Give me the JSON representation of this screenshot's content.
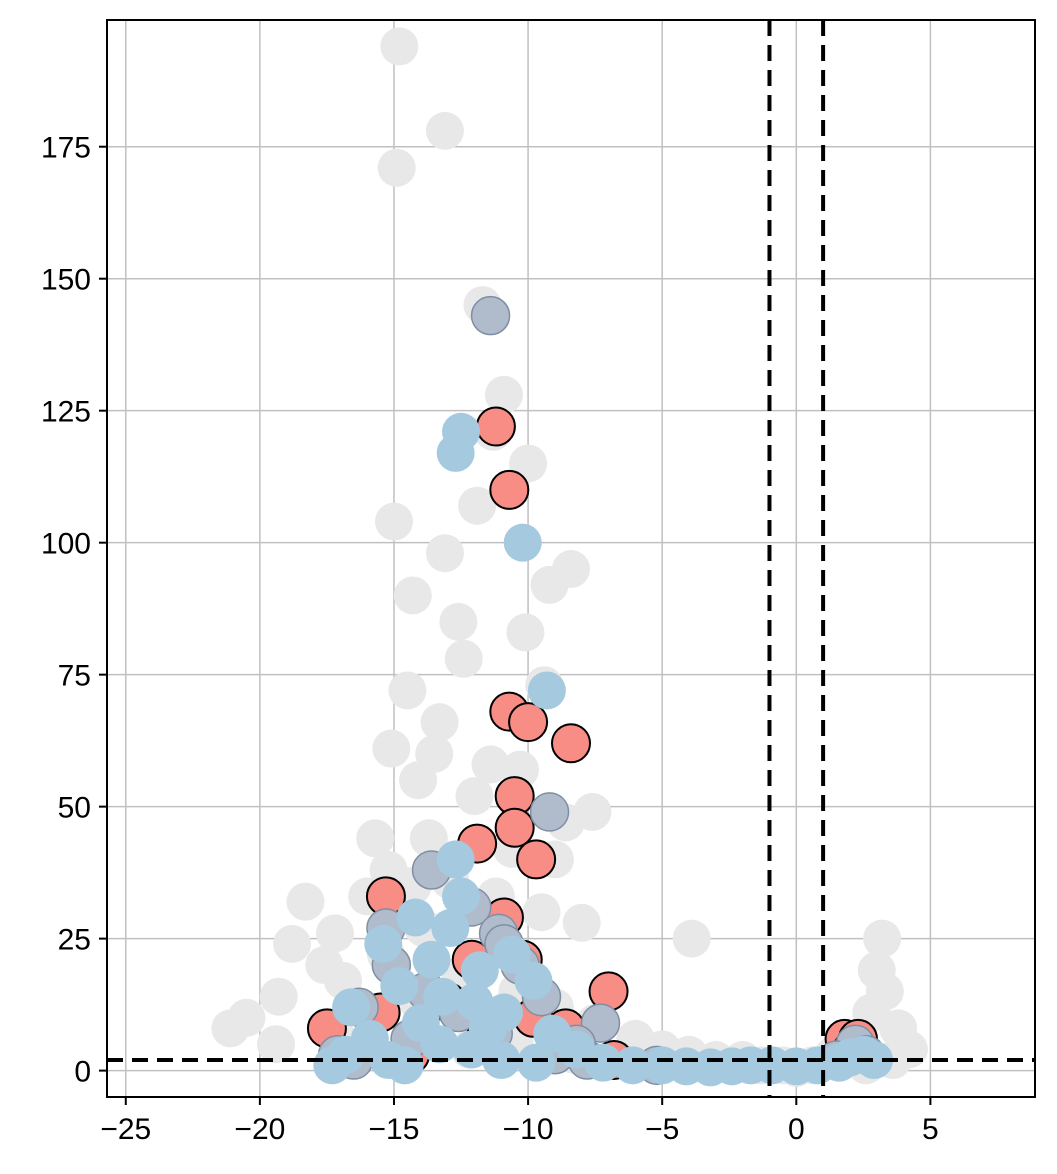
{
  "chart_data": {
    "type": "scatter",
    "title": "",
    "xlabel": "",
    "ylabel": "",
    "xlim": [
      -25.7,
      8.9
    ],
    "ylim": [
      -5,
      199
    ],
    "x_ticks": [
      -25,
      -20,
      -15,
      -10,
      -5,
      0,
      5
    ],
    "x_tick_labels": [
      "−25",
      "−20",
      "−15",
      "−10",
      "−5",
      "0",
      "5"
    ],
    "y_ticks": [
      0,
      25,
      50,
      75,
      100,
      125,
      150,
      175
    ],
    "y_tick_labels": [
      "0",
      "25",
      "50",
      "75",
      "100",
      "125",
      "150",
      "175"
    ],
    "grid": true,
    "legend": "none",
    "threshold_lines": {
      "vertical": [
        -1,
        1
      ],
      "horizontal": [
        2
      ]
    },
    "colors": {
      "background_points": "#e8e8e8",
      "highlight_red": "#f78d84",
      "highlight_slate": "#b0bccc",
      "highlight_blue": "#a5c9df",
      "grid": "#c0c0c0",
      "threshold": "#000000"
    },
    "series": [
      {
        "style": "background",
        "points": [
          [
            -14.8,
            194
          ],
          [
            -13.1,
            178
          ],
          [
            -14.9,
            171
          ],
          [
            -11.7,
            145
          ],
          [
            -10.9,
            128
          ],
          [
            -11.3,
            121
          ],
          [
            -10.0,
            115
          ],
          [
            -11.9,
            107
          ],
          [
            -15.0,
            104
          ],
          [
            -13.1,
            98
          ],
          [
            -8.4,
            95
          ],
          [
            -14.3,
            90
          ],
          [
            -9.2,
            92
          ],
          [
            -12.6,
            85
          ],
          [
            -10.1,
            83
          ],
          [
            -12.4,
            78
          ],
          [
            -14.5,
            72
          ],
          [
            -9.4,
            73
          ],
          [
            -13.3,
            66
          ],
          [
            -15.1,
            61
          ],
          [
            -11.4,
            58
          ],
          [
            -14.1,
            55
          ],
          [
            -12.0,
            52
          ],
          [
            -7.6,
            49
          ],
          [
            -8.6,
            47
          ],
          [
            -13.7,
            44
          ],
          [
            -10.6,
            42
          ],
          [
            -15.2,
            38
          ],
          [
            -14.3,
            35
          ],
          [
            -11.2,
            33
          ],
          [
            -18.3,
            32
          ],
          [
            -16.0,
            33
          ],
          [
            -8.0,
            28
          ],
          [
            -9.5,
            30
          ],
          [
            -18.8,
            24
          ],
          [
            -17.2,
            26
          ],
          [
            -13.9,
            27
          ],
          [
            -3.9,
            25
          ],
          [
            -15.3,
            22
          ],
          [
            -17.6,
            20
          ],
          [
            -11.1,
            23
          ],
          [
            3.2,
            25
          ],
          [
            -16.9,
            17
          ],
          [
            3.0,
            19
          ],
          [
            -19.3,
            14
          ],
          [
            -20.5,
            10
          ],
          [
            -21.1,
            8
          ],
          [
            -19.4,
            5
          ],
          [
            -17.2,
            7
          ],
          [
            -14.1,
            13
          ],
          [
            -12.5,
            18
          ],
          [
            -10.4,
            15
          ],
          [
            -9.0,
            12
          ],
          [
            -7.5,
            9
          ],
          [
            -6.0,
            6
          ],
          [
            -5.0,
            4
          ],
          [
            -4.0,
            3
          ],
          [
            -3.0,
            2
          ],
          [
            -2.0,
            2
          ],
          [
            -1.3,
            1
          ],
          [
            -0.5,
            1
          ],
          [
            0.0,
            0.5
          ],
          [
            0.6,
            1
          ],
          [
            1.4,
            3
          ],
          [
            2.8,
            11
          ],
          [
            3.3,
            15
          ],
          [
            3.8,
            8
          ],
          [
            4.2,
            4
          ],
          [
            3.6,
            2
          ],
          [
            2.6,
            1
          ],
          [
            -16.3,
            3
          ],
          [
            -14.2,
            5
          ],
          [
            -12.2,
            4
          ],
          [
            -10.5,
            6
          ],
          [
            -8.3,
            3
          ],
          [
            -15.7,
            44
          ],
          [
            -12.9,
            36
          ],
          [
            -9.0,
            40
          ],
          [
            -10.3,
            57
          ],
          [
            -13.5,
            60
          ]
        ]
      },
      {
        "style": "red",
        "points": [
          [
            -11.2,
            122
          ],
          [
            -10.7,
            110
          ],
          [
            -10.7,
            68
          ],
          [
            -10.0,
            66
          ],
          [
            -8.4,
            62
          ],
          [
            -10.5,
            52
          ],
          [
            -10.5,
            46
          ],
          [
            -9.7,
            40
          ],
          [
            -11.9,
            43
          ],
          [
            -15.3,
            33
          ],
          [
            -10.9,
            29
          ],
          [
            -17.5,
            8
          ],
          [
            -7.0,
            15
          ],
          [
            -10.2,
            21
          ],
          [
            -12.1,
            21
          ],
          [
            -8.6,
            8
          ],
          [
            -15.5,
            11
          ],
          [
            -13.0,
            13
          ],
          [
            -9.8,
            10
          ],
          [
            -11.6,
            6
          ],
          [
            1.8,
            6
          ],
          [
            2.3,
            6
          ],
          [
            2.1,
            4
          ],
          [
            -14.4,
            3
          ],
          [
            -6.8,
            2
          ]
        ]
      },
      {
        "style": "slate",
        "points": [
          [
            -11.4,
            143
          ],
          [
            -9.2,
            49
          ],
          [
            -13.6,
            38
          ],
          [
            -15.3,
            27
          ],
          [
            -12.1,
            31
          ],
          [
            -11.1,
            26
          ],
          [
            -10.9,
            24
          ],
          [
            -15.1,
            20
          ],
          [
            -10.3,
            20
          ],
          [
            -9.5,
            14
          ],
          [
            -7.3,
            9
          ],
          [
            -16.3,
            12
          ],
          [
            -13.8,
            15
          ],
          [
            -12.6,
            11
          ],
          [
            -11.3,
            7
          ],
          [
            -17.1,
            3
          ],
          [
            -16.5,
            2
          ],
          [
            -9.0,
            3
          ],
          [
            -7.8,
            2
          ],
          [
            -5.2,
            1
          ],
          [
            2.2,
            5
          ],
          [
            2.6,
            3
          ],
          [
            1.5,
            2
          ],
          [
            -14.4,
            6
          ],
          [
            -8.2,
            5
          ]
        ]
      },
      {
        "style": "blue",
        "points": [
          [
            -12.5,
            121
          ],
          [
            -12.7,
            117
          ],
          [
            -10.2,
            100
          ],
          [
            -9.3,
            72
          ],
          [
            -12.7,
            40
          ],
          [
            -12.5,
            33
          ],
          [
            -14.2,
            29
          ],
          [
            -12.9,
            27
          ],
          [
            -15.4,
            24
          ],
          [
            -10.6,
            22
          ],
          [
            -13.6,
            21
          ],
          [
            -11.8,
            19
          ],
          [
            -9.8,
            17
          ],
          [
            -14.8,
            16
          ],
          [
            -13.2,
            14
          ],
          [
            -12.0,
            13
          ],
          [
            -16.6,
            12
          ],
          [
            -10.9,
            11
          ],
          [
            -14.0,
            9
          ],
          [
            -11.5,
            8
          ],
          [
            -9.1,
            7
          ],
          [
            -15.9,
            6
          ],
          [
            -13.3,
            5
          ],
          [
            -12.1,
            4
          ],
          [
            -8.2,
            4
          ],
          [
            -16.8,
            3
          ],
          [
            -15.2,
            2
          ],
          [
            -11.0,
            2
          ],
          [
            -9.7,
            1.5
          ],
          [
            -7.2,
            1.5
          ],
          [
            -6.1,
            1
          ],
          [
            -5.0,
            1
          ],
          [
            -4.1,
            0.8
          ],
          [
            -3.2,
            0.6
          ],
          [
            -2.4,
            0.8
          ],
          [
            -1.7,
            1
          ],
          [
            -0.9,
            1
          ],
          [
            0.0,
            0.8
          ],
          [
            0.8,
            1
          ],
          [
            1.6,
            1.5
          ],
          [
            2.0,
            2.5
          ],
          [
            2.5,
            3
          ],
          [
            2.9,
            2
          ],
          [
            -17.3,
            1
          ],
          [
            -14.6,
            1
          ]
        ]
      }
    ]
  }
}
